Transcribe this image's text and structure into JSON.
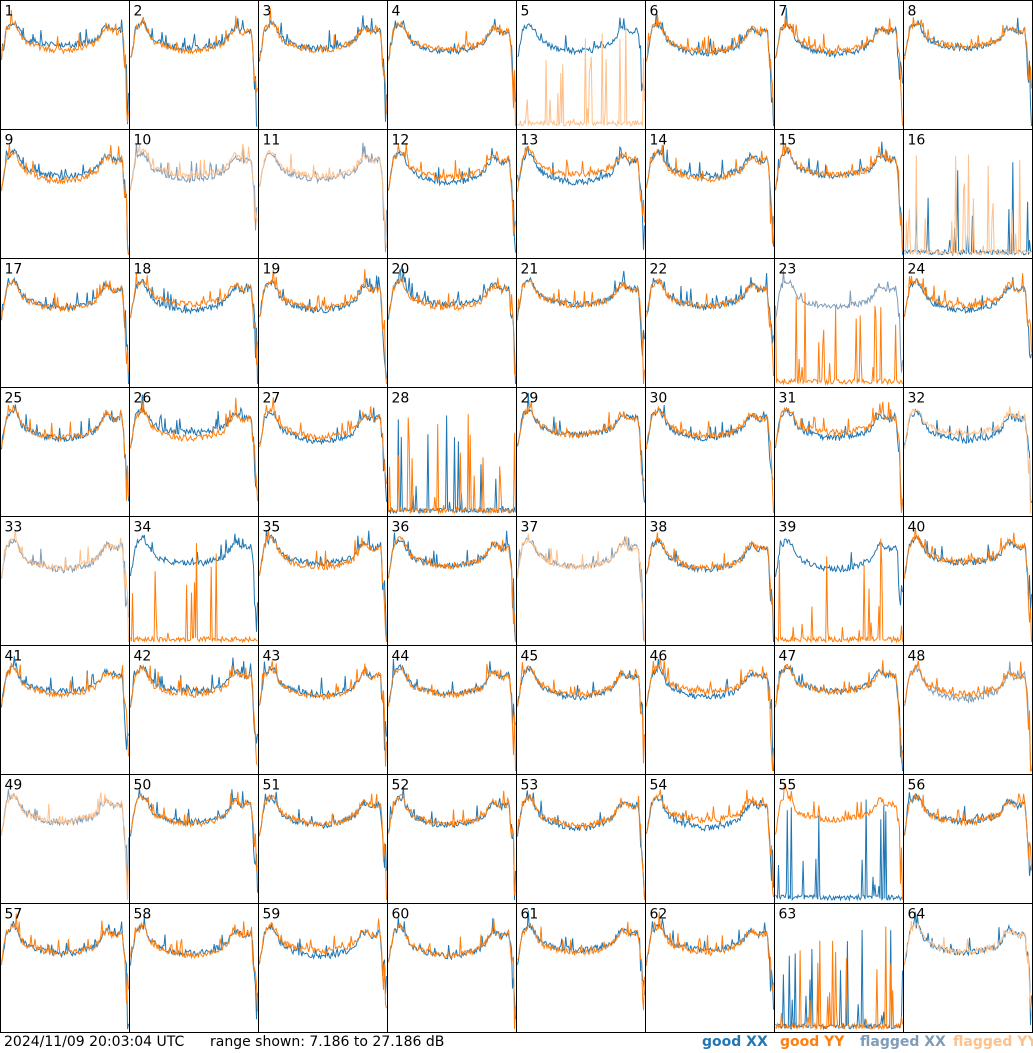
{
  "chart_data": {
    "type": "line",
    "layout": "8x8 grid of small multiples",
    "panels": [
      1,
      2,
      3,
      4,
      5,
      6,
      7,
      8,
      9,
      10,
      11,
      12,
      13,
      14,
      15,
      16,
      17,
      18,
      19,
      20,
      21,
      22,
      23,
      24,
      25,
      26,
      27,
      28,
      29,
      30,
      31,
      32,
      33,
      34,
      35,
      36,
      37,
      38,
      39,
      40,
      41,
      42,
      43,
      44,
      45,
      46,
      47,
      48,
      49,
      50,
      51,
      52,
      53,
      54,
      55,
      56,
      57,
      58,
      59,
      60,
      61,
      62,
      63,
      64
    ],
    "ylim_db": [
      7.186,
      27.186
    ],
    "grid": false,
    "legend_position": "bottom-right",
    "series": [
      {
        "name": "good XX",
        "color": "#1f77b4"
      },
      {
        "name": "good YY",
        "color": "#ff7f0e"
      },
      {
        "name": "flagged XX",
        "color": "#7f9cb8"
      },
      {
        "name": "flagged YY",
        "color": "#ffc08a"
      }
    ],
    "flagged": {
      "xx": [
        10,
        11,
        23,
        33,
        37,
        48,
        49
      ],
      "yy": [
        5,
        10,
        11,
        16,
        32,
        33,
        37,
        49,
        64
      ]
    },
    "anomalous_panels": [
      5,
      9,
      16,
      23,
      28,
      32,
      34,
      39,
      55,
      63
    ]
  },
  "footer": {
    "timestamp": "2024/11/09 20:03:04 UTC",
    "range_text": "range shown: 7.186 to 27.186 dB",
    "legend": [
      "good XX",
      "good YY",
      "flagged XX",
      "flagged YY"
    ]
  }
}
